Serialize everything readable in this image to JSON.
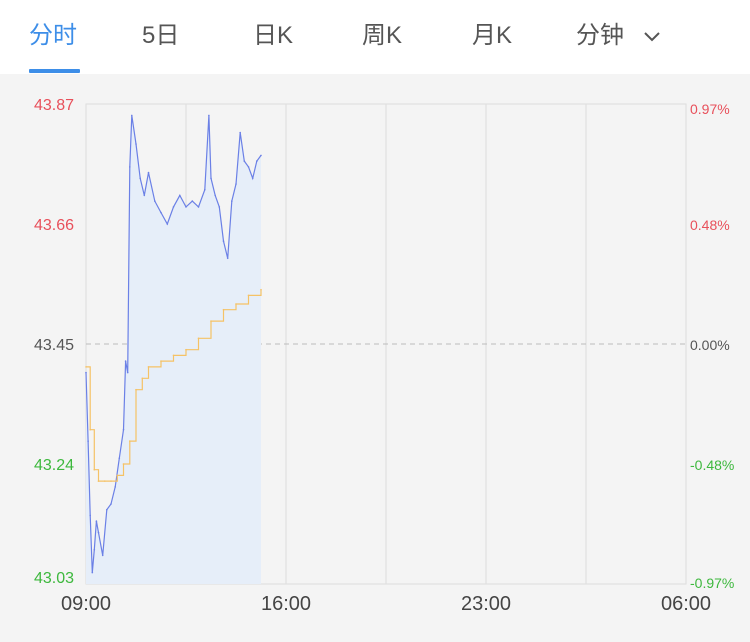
{
  "tabs": [
    {
      "label": "分时",
      "active": true
    },
    {
      "label": "5日",
      "active": false
    },
    {
      "label": "日K",
      "active": false
    },
    {
      "label": "周K",
      "active": false
    },
    {
      "label": "月K",
      "active": false
    },
    {
      "label": "分钟",
      "active": false,
      "dropdown": true
    }
  ],
  "icons": {
    "dropdown": "chevron-down-icon"
  },
  "colors": {
    "accent": "#3d8ee8",
    "up": "#e8505b",
    "down": "#3db83d",
    "neutral": "#555555",
    "price_line": "#6b80e6",
    "price_fill": "#e6eef9",
    "avg_line": "#f5c266"
  },
  "chart_data": {
    "type": "line",
    "title": "",
    "xlabel": "",
    "ylabel": "",
    "ylim": [
      43.03,
      43.87
    ],
    "reference_price": 43.45,
    "y_ticks": [
      "43.87",
      "43.66",
      "43.45",
      "43.24",
      "43.03"
    ],
    "pct_ticks": [
      "0.97%",
      "0.48%",
      "0.00%",
      "-0.48%",
      "-0.97%"
    ],
    "x_ticks": [
      "09:00",
      "16:00",
      "23:00",
      "06:00"
    ],
    "x_range": [
      "09:00",
      "09:00 (+1 day)"
    ],
    "grid": true,
    "legend": "none",
    "series": [
      {
        "x": [
          "09:00",
          "09:05",
          "09:10",
          "09:15",
          "09:20",
          "09:25",
          "09:30",
          "09:40",
          "09:50",
          "10:00",
          "10:10",
          "10:20",
          "10:30",
          "10:35",
          "10:40",
          "10:45",
          "10:50",
          "11:00",
          "11:10",
          "11:20",
          "11:30",
          "11:45",
          "12:00",
          "12:15",
          "12:30",
          "12:45",
          "13:00",
          "13:15",
          "13:30",
          "13:45",
          "13:55",
          "14:00",
          "14:10",
          "14:20",
          "14:30",
          "14:40",
          "14:50",
          "15:00",
          "15:10",
          "15:20",
          "15:30",
          "15:40",
          "15:50",
          "16:00"
        ],
        "values": [
          43.4,
          43.28,
          43.15,
          43.05,
          43.09,
          43.14,
          43.12,
          43.08,
          43.16,
          43.17,
          43.2,
          43.25,
          43.3,
          43.42,
          43.4,
          43.76,
          43.85,
          43.8,
          43.74,
          43.71,
          43.75,
          43.7,
          43.68,
          43.66,
          43.69,
          43.71,
          43.69,
          43.7,
          43.69,
          43.72,
          43.85,
          43.74,
          43.71,
          43.69,
          43.63,
          43.6,
          43.7,
          43.73,
          43.82,
          43.77,
          43.76,
          43.74,
          43.77,
          43.78
        ]
      },
      {
        "x": [
          "09:00",
          "09:10",
          "09:20",
          "09:30",
          "09:45",
          "10:00",
          "10:15",
          "10:30",
          "10:45",
          "11:00",
          "11:15",
          "11:30",
          "12:00",
          "12:30",
          "13:00",
          "13:30",
          "14:00",
          "14:30",
          "15:00",
          "15:30",
          "16:00"
        ],
        "values": [
          43.41,
          43.3,
          43.23,
          43.21,
          43.21,
          43.21,
          43.22,
          43.24,
          43.28,
          43.37,
          43.39,
          43.41,
          43.42,
          43.43,
          43.44,
          43.46,
          43.49,
          43.51,
          43.52,
          43.535,
          43.545
        ]
      }
    ]
  }
}
